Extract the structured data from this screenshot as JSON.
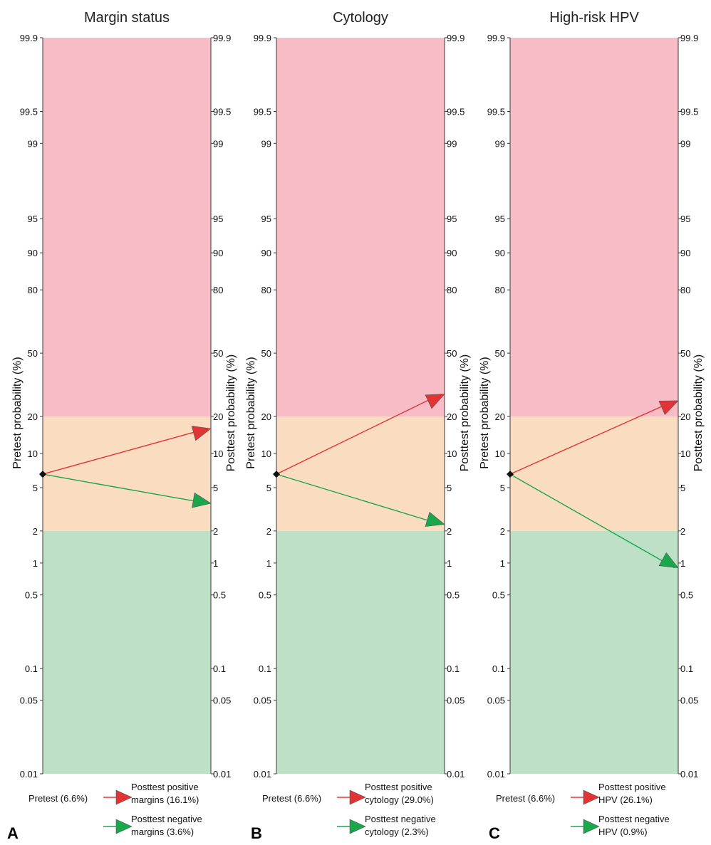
{
  "colors": {
    "high_zone": "#f7bcc6",
    "mid_zone": "#fadcc1",
    "low_zone": "#bde0c7",
    "positive_arrow": "#e23434",
    "negative_arrow": "#1aa64a",
    "axis": "#3a3a3a",
    "pretest_marker": "#111111"
  },
  "chart_data": [
    {
      "type": "line",
      "title": "Margin status",
      "panel_letter": "A",
      "left_axis_label": "Pretest probability (%)",
      "right_axis_label": "Posttest probability (%)",
      "tick_labels": [
        "99.9",
        "99.5",
        "99",
        "95",
        "90",
        "80",
        "50",
        "20",
        "10",
        "5",
        "2",
        "1",
        "0.5",
        "0.1",
        "0.05",
        "0.01"
      ],
      "ylim": [
        0.01,
        99.9
      ],
      "zones": [
        {
          "from": 20,
          "to": 99.9,
          "color_key": "high_zone"
        },
        {
          "from": 2,
          "to": 20,
          "color_key": "mid_zone"
        },
        {
          "from": 0.01,
          "to": 2,
          "color_key": "low_zone"
        }
      ],
      "pretest": 6.6,
      "series": [
        {
          "kind": "positive",
          "from": 6.6,
          "to": 16.1
        },
        {
          "kind": "negative",
          "from": 6.6,
          "to": 3.6
        }
      ],
      "legend": {
        "pretest_label": "Pretest (6.6%)",
        "positive_label": [
          "Posttest positive",
          "margins (16.1%)"
        ],
        "negative_label": [
          "Posttest negative",
          "margins (3.6%)"
        ]
      }
    },
    {
      "type": "line",
      "title": "Cytology",
      "panel_letter": "B",
      "left_axis_label": "Pretest probability (%)",
      "right_axis_label": "Posttest probability (%)",
      "tick_labels": [
        "99.9",
        "99.5",
        "99",
        "95",
        "90",
        "80",
        "50",
        "20",
        "10",
        "5",
        "2",
        "1",
        "0.5",
        "0.1",
        "0.05",
        "0.01"
      ],
      "ylim": [
        0.01,
        99.9
      ],
      "zones": [
        {
          "from": 20,
          "to": 99.9,
          "color_key": "high_zone"
        },
        {
          "from": 2,
          "to": 20,
          "color_key": "mid_zone"
        },
        {
          "from": 0.01,
          "to": 2,
          "color_key": "low_zone"
        }
      ],
      "pretest": 6.6,
      "series": [
        {
          "kind": "positive",
          "from": 6.6,
          "to": 29.0
        },
        {
          "kind": "negative",
          "from": 6.6,
          "to": 2.3
        }
      ],
      "legend": {
        "pretest_label": "Pretest (6.6%)",
        "positive_label": [
          "Posttest positive",
          "cytology (29.0%)"
        ],
        "negative_label": [
          "Posttest negative",
          "cytology (2.3%)"
        ]
      }
    },
    {
      "type": "line",
      "title": "High-risk HPV",
      "panel_letter": "C",
      "left_axis_label": "Pretest probability (%)",
      "right_axis_label": "Posttest probability (%)",
      "tick_labels": [
        "99.9",
        "99.5",
        "99",
        "95",
        "90",
        "80",
        "50",
        "20",
        "10",
        "5",
        "2",
        "1",
        "0.5",
        "0.1",
        "0.05",
        "0.01"
      ],
      "ylim": [
        0.01,
        99.9
      ],
      "zones": [
        {
          "from": 20,
          "to": 99.9,
          "color_key": "high_zone"
        },
        {
          "from": 2,
          "to": 20,
          "color_key": "mid_zone"
        },
        {
          "from": 0.01,
          "to": 2,
          "color_key": "low_zone"
        }
      ],
      "pretest": 6.6,
      "series": [
        {
          "kind": "positive",
          "from": 6.6,
          "to": 26.1
        },
        {
          "kind": "negative",
          "from": 6.6,
          "to": 0.9
        }
      ],
      "legend": {
        "pretest_label": "Pretest (6.6%)",
        "positive_label": [
          "Posttest positive",
          "HPV (26.1%)"
        ],
        "negative_label": [
          "Posttest negative",
          "HPV (0.9%)"
        ]
      }
    }
  ]
}
